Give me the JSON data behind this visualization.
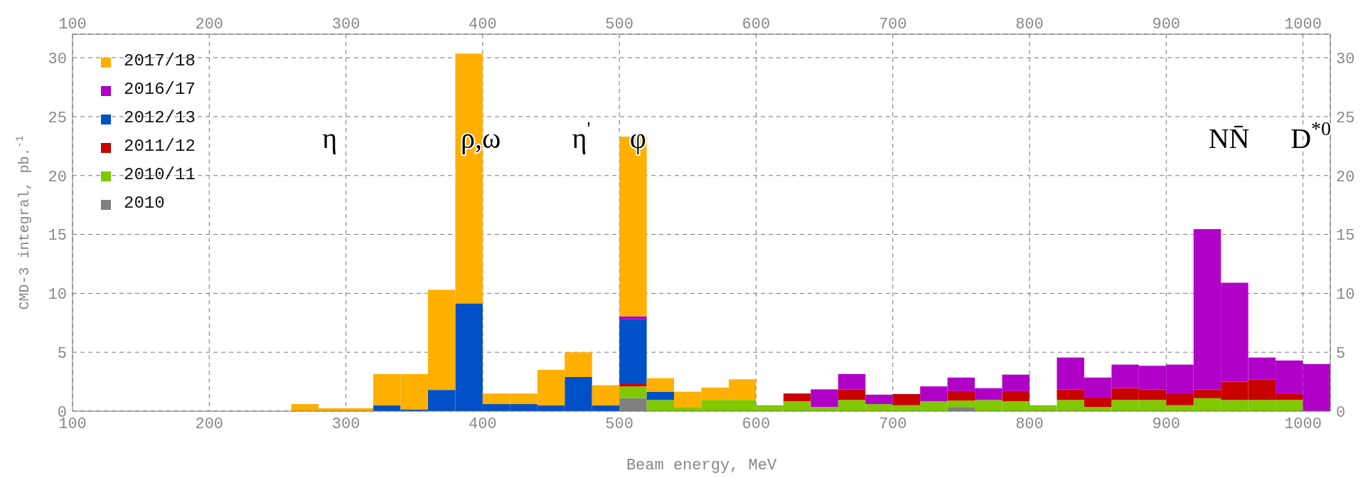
{
  "chart_data": {
    "type": "bar",
    "stacked": true,
    "xlabel": "Beam energy, MeV",
    "ylabel": "CMD-3 integral, pb.$^{-1}$",
    "x": [
      270,
      290,
      310,
      330,
      350,
      370,
      390,
      410,
      430,
      450,
      470,
      490,
      510,
      530,
      550,
      570,
      590,
      610,
      630,
      650,
      670,
      690,
      710,
      730,
      750,
      770,
      790,
      810,
      830,
      850,
      870,
      890,
      910,
      930,
      950,
      970,
      990,
      1010
    ],
    "series": [
      {
        "name": "2010",
        "color": "#808080",
        "values": [
          0,
          0,
          0,
          0,
          0,
          0,
          0,
          0,
          0,
          0,
          0,
          0,
          1.1,
          0,
          0,
          0,
          0,
          0,
          0,
          0,
          0,
          0,
          0,
          0,
          0.35,
          0,
          0,
          0,
          0,
          0,
          0,
          0,
          0,
          0,
          0,
          0,
          0,
          0
        ]
      },
      {
        "name": "2010/11",
        "color": "#80c800",
        "values": [
          0,
          0,
          0,
          0,
          0,
          0,
          0,
          0,
          0,
          0,
          0,
          0,
          1.0,
          0.95,
          0.35,
          0.95,
          0.95,
          0.5,
          0.85,
          0.35,
          0.95,
          0.6,
          0.5,
          0.85,
          0.55,
          0.95,
          0.85,
          0.5,
          0.95,
          0.35,
          0.95,
          0.95,
          0.5,
          1.1,
          0.95,
          0.95,
          0.95,
          0
        ]
      },
      {
        "name": "2011/12",
        "color": "#c80000",
        "values": [
          0,
          0,
          0,
          0,
          0,
          0,
          0,
          0,
          0,
          0,
          0,
          0,
          0.25,
          0,
          0,
          0,
          0,
          0,
          0.65,
          0,
          0.9,
          0,
          0.95,
          0,
          0.8,
          0,
          0.85,
          0,
          0.9,
          0.8,
          1.0,
          0.9,
          0.95,
          0.75,
          1.55,
          1.75,
          0.55,
          0
        ]
      },
      {
        "name": "2012/13",
        "color": "#0050c8",
        "values": [
          0,
          0,
          0,
          0.5,
          0.15,
          1.8,
          9.15,
          0.6,
          0.6,
          0.5,
          2.9,
          0.5,
          5.45,
          0.7,
          0,
          0,
          0,
          0,
          0,
          0,
          0,
          0,
          0,
          0,
          0,
          0,
          0,
          0,
          0,
          0,
          0,
          0,
          0,
          0,
          0,
          0,
          0,
          0
        ]
      },
      {
        "name": "2016/17",
        "color": "#b000c8",
        "values": [
          0,
          0,
          0,
          0,
          0,
          0,
          0,
          0,
          0,
          0,
          0,
          0,
          0.25,
          0,
          0,
          0,
          0,
          0,
          0,
          1.5,
          1.3,
          0.8,
          0,
          1.25,
          1.15,
          1.0,
          1.4,
          0,
          2.7,
          1.7,
          2.0,
          2.0,
          2.5,
          13.6,
          8.4,
          1.85,
          2.8,
          4.0
        ]
      },
      {
        "name": "2017/18",
        "color": "#ffb000",
        "values": [
          0.6,
          0.25,
          0.25,
          2.65,
          3.0,
          8.5,
          21.2,
          0.9,
          0.9,
          3.0,
          2.1,
          1.7,
          15.25,
          1.15,
          1.3,
          1.05,
          1.75,
          0,
          0,
          0,
          0,
          0,
          0,
          0,
          0,
          0,
          0,
          0,
          0,
          0,
          0,
          0,
          0,
          0,
          0,
          0,
          0,
          0
        ]
      }
    ],
    "xlim": [
      100,
      1020
    ],
    "xticks": [
      100,
      200,
      300,
      400,
      500,
      600,
      700,
      800,
      900,
      1000
    ],
    "x2lim": [
      100,
      1020
    ],
    "x2ticks": [
      100,
      200,
      300,
      400,
      500,
      600,
      700,
      800,
      900,
      1000
    ],
    "ylim": [
      0,
      32
    ],
    "yticks": [
      0,
      5,
      10,
      15,
      20,
      25,
      30
    ],
    "y2lim": [
      0,
      32
    ],
    "y2ticks": [
      0,
      5,
      10,
      15,
      20,
      25,
      30
    ],
    "grid": true,
    "legend": "top left",
    "annotations": [
      "η",
      "ρ,ω",
      "η$^{'}$",
      "φ",
      "NN̄",
      "D$^{*0}$"
    ]
  }
}
